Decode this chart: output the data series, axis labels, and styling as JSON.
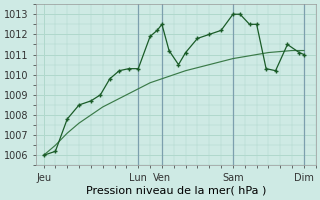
{
  "title": "Pression niveau de la mer( hPa )",
  "bg_color": "#ceeae4",
  "grid_color": "#b0d8cc",
  "line_color": "#1a5c28",
  "trend_color": "#3a7a48",
  "ylim": [
    1005.5,
    1013.5
  ],
  "yticks": [
    1006,
    1007,
    1008,
    1009,
    1010,
    1011,
    1012,
    1013
  ],
  "xtick_labels": [
    "Jeu",
    "Lun",
    "Ven",
    "Sam",
    "Dim"
  ],
  "xtick_positions": [
    0,
    4.0,
    5.0,
    8.0,
    11.0
  ],
  "line1_x": [
    0,
    0.5,
    1.0,
    1.5,
    2.0,
    2.4,
    2.8,
    3.2,
    3.6,
    4.0,
    4.5,
    4.8,
    5.0,
    5.3,
    5.7,
    6.0,
    6.5,
    7.0,
    7.5,
    8.0,
    8.3,
    8.7,
    9.0,
    9.4,
    9.8,
    10.3,
    10.8,
    11.0
  ],
  "line1_y": [
    1006.0,
    1006.2,
    1007.8,
    1008.5,
    1008.7,
    1009.0,
    1009.8,
    1010.2,
    1010.3,
    1010.3,
    1011.9,
    1012.2,
    1012.5,
    1011.2,
    1010.5,
    1011.1,
    1011.8,
    1012.0,
    1012.2,
    1013.0,
    1013.0,
    1012.5,
    1012.5,
    1010.3,
    1010.2,
    1011.5,
    1011.1,
    1011.0
  ],
  "line2_x": [
    0,
    0.5,
    1.0,
    1.5,
    2.0,
    2.5,
    3.0,
    3.5,
    4.0,
    4.5,
    5.0,
    5.5,
    6.0,
    6.5,
    7.0,
    7.5,
    8.0,
    8.5,
    9.0,
    9.5,
    10.0,
    10.5,
    11.0
  ],
  "line2_y": [
    1006.0,
    1006.5,
    1007.1,
    1007.6,
    1008.0,
    1008.4,
    1008.7,
    1009.0,
    1009.3,
    1009.6,
    1009.8,
    1010.0,
    1010.2,
    1010.35,
    1010.5,
    1010.65,
    1010.8,
    1010.9,
    1011.0,
    1011.1,
    1011.15,
    1011.2,
    1011.2
  ],
  "vline_positions": [
    4.0,
    5.0,
    8.0,
    11.0
  ],
  "vline_color": "#7799aa",
  "xlabel_fontsize": 8,
  "tick_fontsize": 7
}
